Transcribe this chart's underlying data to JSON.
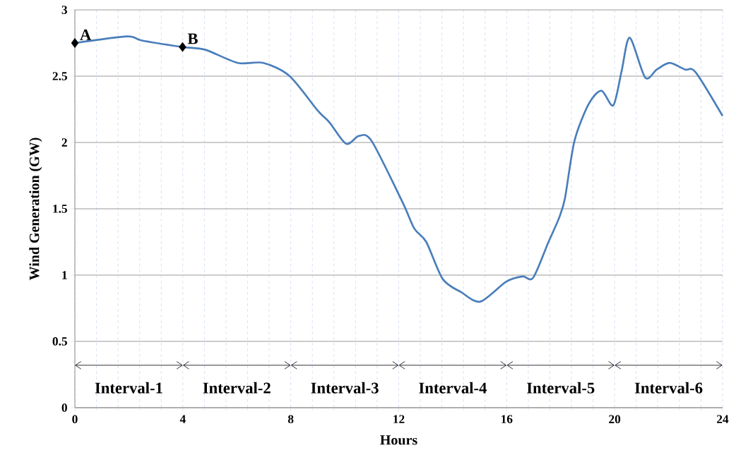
{
  "chart_data": {
    "type": "line",
    "xlabel": "Hours",
    "ylabel": "Wind Generation (GW)",
    "xlim": [
      0,
      24
    ],
    "ylim": [
      0,
      3
    ],
    "xticks": [
      0,
      4,
      8,
      12,
      16,
      20,
      24
    ],
    "yticks": [
      0,
      0.5,
      1,
      1.5,
      2,
      2.5,
      3
    ],
    "grid": true,
    "series": [
      {
        "color": "#4a7ebb",
        "x": [
          0,
          1.94,
          2.46,
          3.99,
          4.82,
          6.04,
          6.99,
          7.96,
          9.0,
          9.44,
          10.05,
          10.53,
          11.0,
          12.14,
          12.58,
          13.02,
          13.63,
          14.32,
          15.02,
          15.98,
          16.59,
          16.98,
          17.55,
          17.94,
          18.16,
          18.51,
          19.04,
          19.51,
          19.95,
          20.26,
          20.56,
          21.13,
          21.56,
          22.04,
          22.61,
          23.0,
          24.0
        ],
        "values": [
          2.75,
          2.8,
          2.77,
          2.72,
          2.7,
          2.6,
          2.6,
          2.5,
          2.24,
          2.15,
          1.99,
          2.05,
          2.01,
          1.55,
          1.35,
          1.25,
          0.97,
          0.87,
          0.8,
          0.95,
          0.99,
          0.98,
          1.25,
          1.43,
          1.58,
          2.01,
          2.29,
          2.39,
          2.28,
          2.54,
          2.79,
          2.49,
          2.55,
          2.6,
          2.55,
          2.53,
          2.2
        ]
      },
      {
        "type": "scatter",
        "color": "#000000",
        "marker": "diamond",
        "x": [
          0,
          3.99
        ],
        "values": [
          2.75,
          2.72
        ]
      }
    ],
    "annotations": [
      {
        "text": "A",
        "x": 0,
        "y": 2.75
      },
      {
        "text": "B",
        "x": 3.99,
        "y": 2.72
      },
      "Interval-1",
      "Interval-2",
      "Interval-3",
      "Interval-4",
      "Interval-5",
      "Interval-6"
    ]
  }
}
